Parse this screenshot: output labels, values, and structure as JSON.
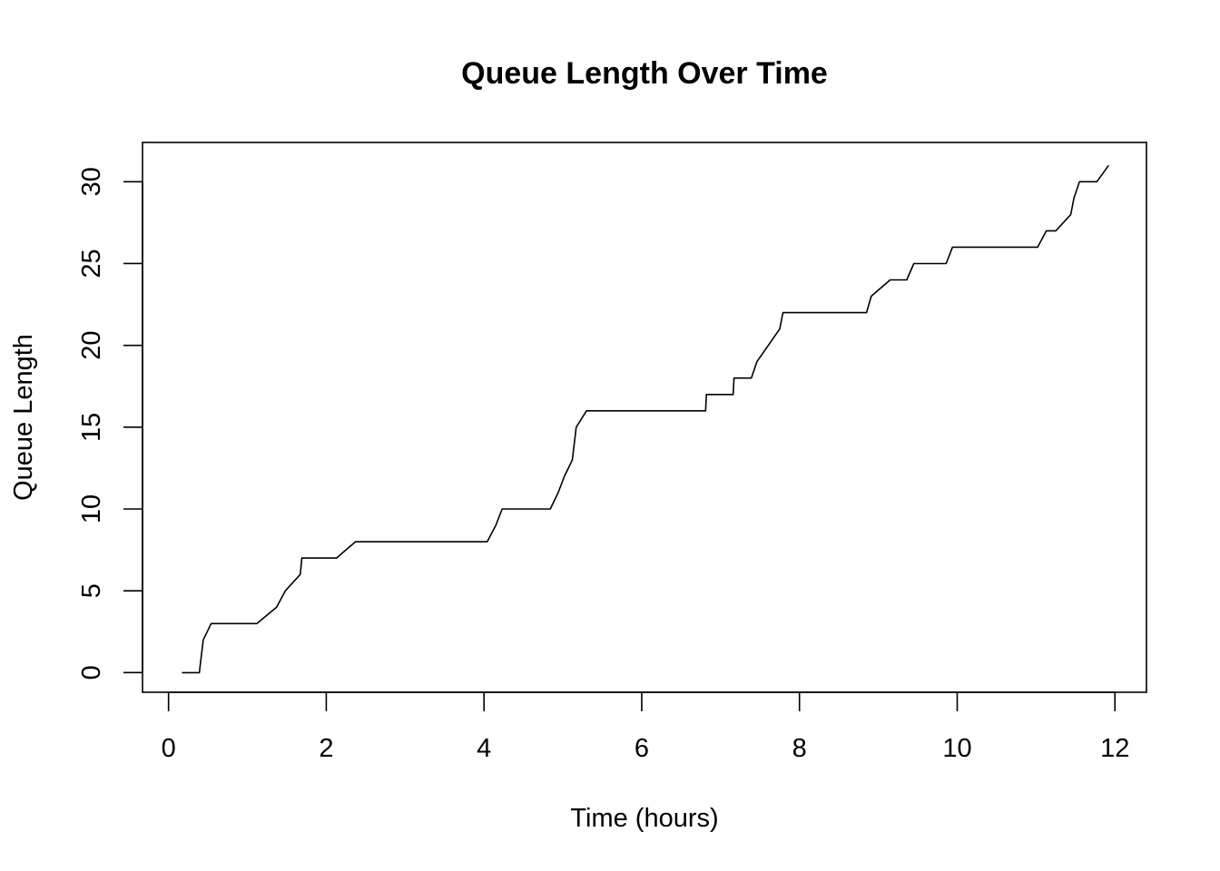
{
  "chart_data": {
    "type": "line",
    "title": "Queue Length Over Time",
    "xlabel": "Time (hours)",
    "ylabel": "Queue Length",
    "xlim": [
      -0.33,
      12.4
    ],
    "ylim": [
      -1.2,
      32.4
    ],
    "x_ticks": [
      0,
      2,
      4,
      6,
      8,
      10,
      12
    ],
    "y_ticks": [
      0,
      5,
      10,
      15,
      20,
      25,
      30
    ],
    "grid": false,
    "legend": "none",
    "line_color": "#000000",
    "series": [
      {
        "x": [
          0.17,
          0.39,
          0.44,
          0.54,
          1.12,
          1.37,
          1.48,
          1.67,
          1.69,
          2.13,
          2.37,
          4.04,
          4.15,
          4.23,
          4.84,
          4.94,
          5.02,
          5.12,
          5.17,
          5.3,
          6.81,
          6.82,
          7.16,
          7.17,
          7.39,
          7.46,
          7.75,
          7.79,
          8.85,
          8.91,
          9.15,
          9.36,
          9.45,
          9.86,
          9.94,
          11.02,
          11.13,
          11.25,
          11.44,
          11.48,
          11.55,
          11.77,
          11.92
        ],
        "y": [
          0,
          0,
          2,
          3,
          3,
          4,
          5,
          6,
          7,
          7,
          8,
          8,
          9,
          10,
          10,
          11,
          12,
          13,
          15,
          16,
          16,
          17,
          17,
          18,
          18,
          19,
          21,
          22,
          22,
          23,
          24,
          24,
          25,
          25,
          26,
          26,
          27,
          27,
          28,
          29,
          30,
          30,
          31
        ]
      }
    ]
  }
}
